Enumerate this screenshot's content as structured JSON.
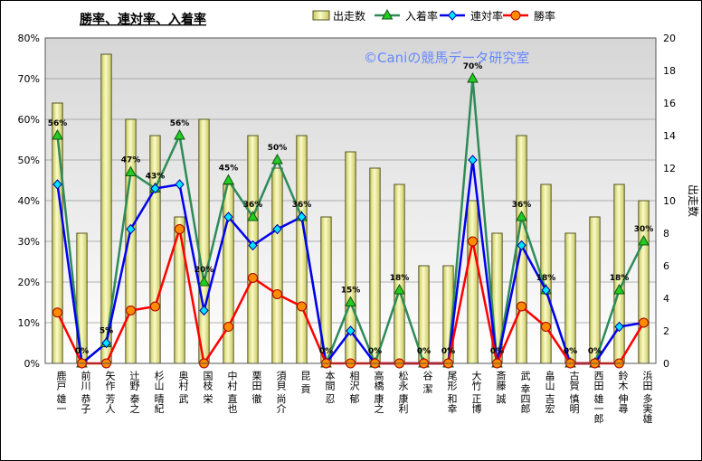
{
  "chart_data": {
    "type": "bar+line",
    "title": "勝率、連対率、入着率",
    "watermark": "©Caniの競馬データ研究室",
    "y_left_label": "",
    "y_right_label": "出走数",
    "y_left_ticks": [
      "0%",
      "10%",
      "20%",
      "30%",
      "40%",
      "50%",
      "60%",
      "70%",
      "80%"
    ],
    "y_right_ticks": [
      "0",
      "2",
      "4",
      "6",
      "8",
      "10",
      "12",
      "14",
      "16",
      "18",
      "20"
    ],
    "ylim_left": [
      0,
      0.8
    ],
    "ylim_right": [
      0,
      20
    ],
    "legend": {
      "position": "top",
      "items": [
        "出走数",
        "入着率",
        "連対率",
        "勝率"
      ]
    },
    "colors": {
      "bar_fill": "#f0f0a0",
      "bar_stroke": "#555522",
      "place": "#2e8b57",
      "place_marker": "#22cc22",
      "quinella": "#0000ee",
      "quinella_marker": "#00e5ff",
      "win": "#ff0000",
      "win_marker": "#ff8c00",
      "plot_top": "#d8d8d8",
      "plot_bottom": "#ffffff"
    },
    "categories": [
      "鹿戸 雄一",
      "前川 恭子",
      "矢作 芳人",
      "辻野 泰之",
      "杉山 晴紀",
      "奥村 武",
      "国枝 栄",
      "中村 直也",
      "栗田 徹",
      "須貝 尚介",
      "昆 貢",
      "本間 忍",
      "相沢 郁",
      "高橋 康之",
      "松永 康利",
      "谷 潔",
      "尾形 和幸",
      "大竹 正博",
      "斎藤 誠",
      "武 幸四郎",
      "畠山 吉宏",
      "古賀 慎明",
      "西田 雄一郎",
      "鈴木 伸尋",
      "浜田 多実雄"
    ],
    "series": [
      {
        "name": "出走数",
        "type": "bar",
        "axis": "right",
        "values": [
          16,
          8,
          19,
          15,
          14,
          9,
          15,
          11,
          14,
          12,
          14,
          9,
          13,
          12,
          11,
          6,
          6,
          10,
          8,
          14,
          11,
          8,
          9,
          11,
          10
        ]
      },
      {
        "name": "入着率",
        "type": "line",
        "axis": "left",
        "values": [
          0.56,
          0,
          0.05,
          0.47,
          0.43,
          0.56,
          0.2,
          0.45,
          0.36,
          0.5,
          0.36,
          0,
          0.15,
          0,
          0.18,
          0,
          0,
          0.7,
          0,
          0.36,
          0.18,
          0,
          0,
          0.18,
          0.3
        ]
      },
      {
        "name": "連対率",
        "type": "line",
        "axis": "left",
        "values": [
          0.44,
          0,
          0.05,
          0.33,
          0.43,
          0.44,
          0.13,
          0.36,
          0.29,
          0.33,
          0.36,
          0,
          0.08,
          0,
          0,
          0,
          0,
          0.5,
          0,
          0.29,
          0.18,
          0,
          0,
          0.09,
          0.1
        ]
      },
      {
        "name": "勝率",
        "type": "line",
        "axis": "left",
        "values": [
          0.125,
          0,
          0,
          0.13,
          0.14,
          0.33,
          0,
          0.09,
          0.21,
          0.17,
          0.14,
          0,
          0,
          0,
          0,
          0,
          0,
          0.3,
          0,
          0.14,
          0.09,
          0,
          0,
          0,
          0.1
        ]
      }
    ],
    "data_labels": [
      "56%",
      "0%",
      "5%",
      "47%",
      "43%",
      "56%",
      "20%",
      "45%",
      "36%",
      "50%",
      "36%",
      "0%",
      "15%",
      "0%",
      "18%",
      "0%",
      "0%",
      "70%",
      "0%",
      "36%",
      "18%",
      "0%",
      "0%",
      "18%",
      "30%"
    ]
  }
}
